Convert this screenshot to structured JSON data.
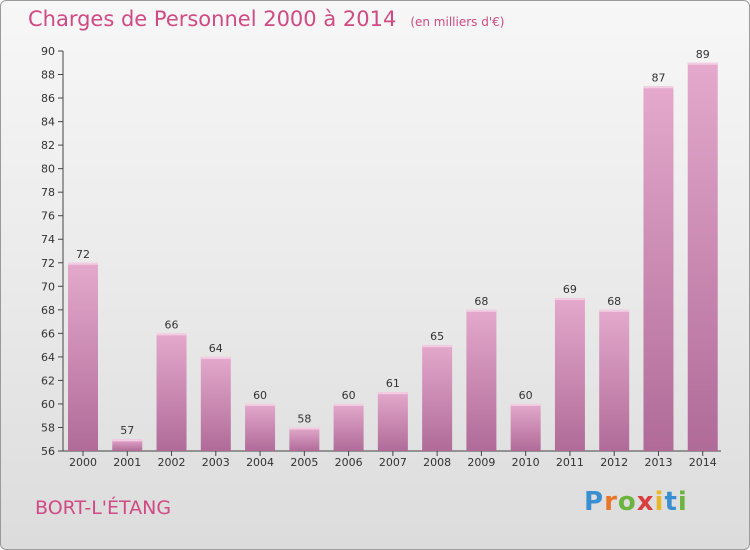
{
  "title": "Charges de Personnel 2000 à 2014",
  "unit": "(en milliers d'€)",
  "commune": "BORT-L'ÉTANG",
  "logo": "Proxiti",
  "colors": {
    "bar_top": "#e4a9cc",
    "bar_bottom": "#b06b98",
    "title": "#d04a83",
    "axis": "#444444"
  },
  "chart_data": {
    "type": "bar",
    "title": "Charges de Personnel 2000 à 2014",
    "ylabel": "",
    "xlabel": "",
    "ylim": [
      56,
      90
    ],
    "yticks": [
      56,
      58,
      60,
      62,
      64,
      66,
      68,
      70,
      72,
      74,
      76,
      78,
      80,
      82,
      84,
      86,
      88,
      90
    ],
    "categories": [
      "2000",
      "2001",
      "2002",
      "2003",
      "2004",
      "2005",
      "2006",
      "2007",
      "2008",
      "2009",
      "2010",
      "2011",
      "2012",
      "2013",
      "2014"
    ],
    "values": [
      72,
      57,
      66,
      64,
      60,
      58,
      60,
      61,
      65,
      68,
      60,
      69,
      68,
      87,
      89
    ],
    "grid": false
  }
}
